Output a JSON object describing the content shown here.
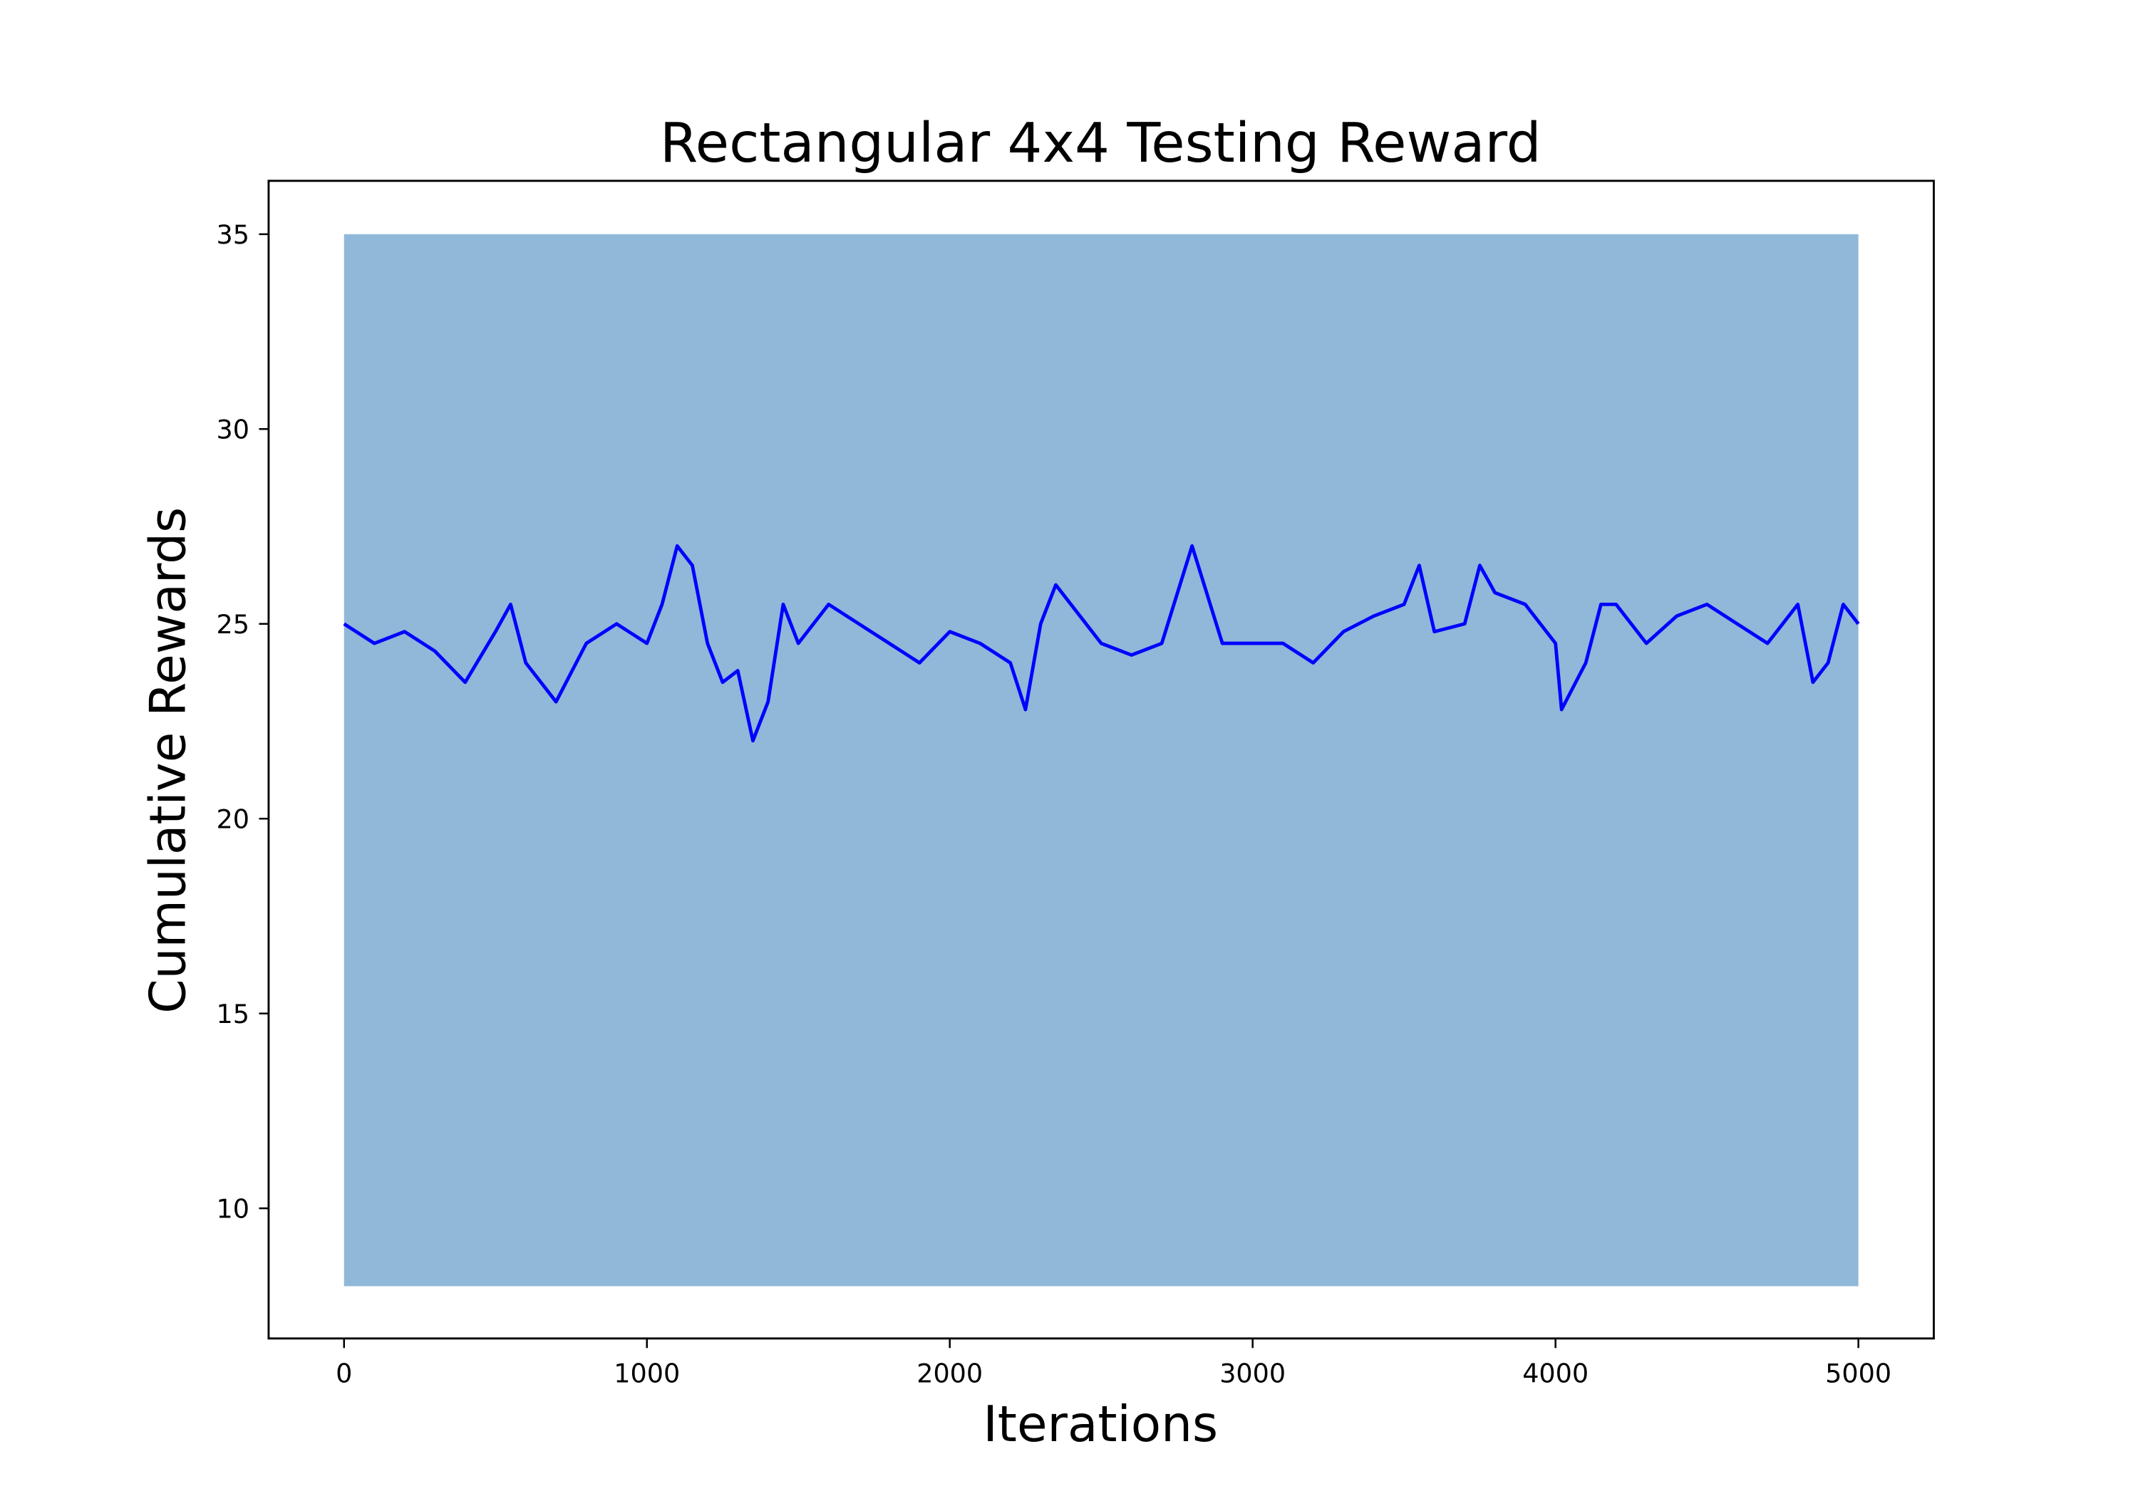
{
  "chart_data": {
    "type": "line",
    "title": "Rectangular 4x4 Testing Reward",
    "x_label": "Iterations",
    "y_label": "Cumulative Rewards",
    "xlim": [
      -249,
      5249
    ],
    "ylim": [
      6.66,
      36.37
    ],
    "xticks": [
      0,
      1000,
      2000,
      3000,
      4000,
      5000
    ],
    "yticks": [
      10,
      15,
      20,
      25,
      30,
      35
    ],
    "grid": false,
    "band": {
      "color": "#8fb8d9",
      "x": [
        0,
        5000
      ],
      "lower": [
        8,
        8
      ],
      "upper": [
        35,
        35
      ]
    },
    "color": "#0000ff",
    "x": [
      0,
      100,
      200,
      300,
      400,
      500,
      550,
      600,
      700,
      800,
      900,
      1000,
      1050,
      1100,
      1150,
      1200,
      1250,
      1300,
      1350,
      1400,
      1450,
      1500,
      1600,
      1700,
      1800,
      1900,
      2000,
      2100,
      2200,
      2250,
      2300,
      2350,
      2400,
      2500,
      2600,
      2700,
      2800,
      2900,
      3000,
      3100,
      3200,
      3300,
      3400,
      3500,
      3550,
      3600,
      3700,
      3750,
      3800,
      3900,
      4000,
      4020,
      4100,
      4150,
      4200,
      4300,
      4400,
      4500,
      4600,
      4700,
      4800,
      4850,
      4900,
      4950,
      5000
    ],
    "values": [
      25,
      24.5,
      24.8,
      24.3,
      23.5,
      24.8,
      25.5,
      24,
      23,
      24.5,
      25,
      24.5,
      25.5,
      27,
      26.5,
      24.5,
      23.5,
      23.8,
      22,
      23,
      25.5,
      24.5,
      25.5,
      25,
      24.5,
      24,
      24.8,
      24.5,
      24,
      22.8,
      25,
      26,
      25.5,
      24.5,
      24.2,
      24.5,
      27,
      24.5,
      24.5,
      24.5,
      24,
      24.8,
      25.2,
      25.5,
      26.5,
      24.8,
      25,
      26.5,
      25.8,
      25.5,
      24.5,
      22.8,
      24,
      25.5,
      25.5,
      24.5,
      25.2,
      25.5,
      25,
      24.5,
      25.5,
      23.5,
      24,
      25.5,
      25
    ]
  }
}
